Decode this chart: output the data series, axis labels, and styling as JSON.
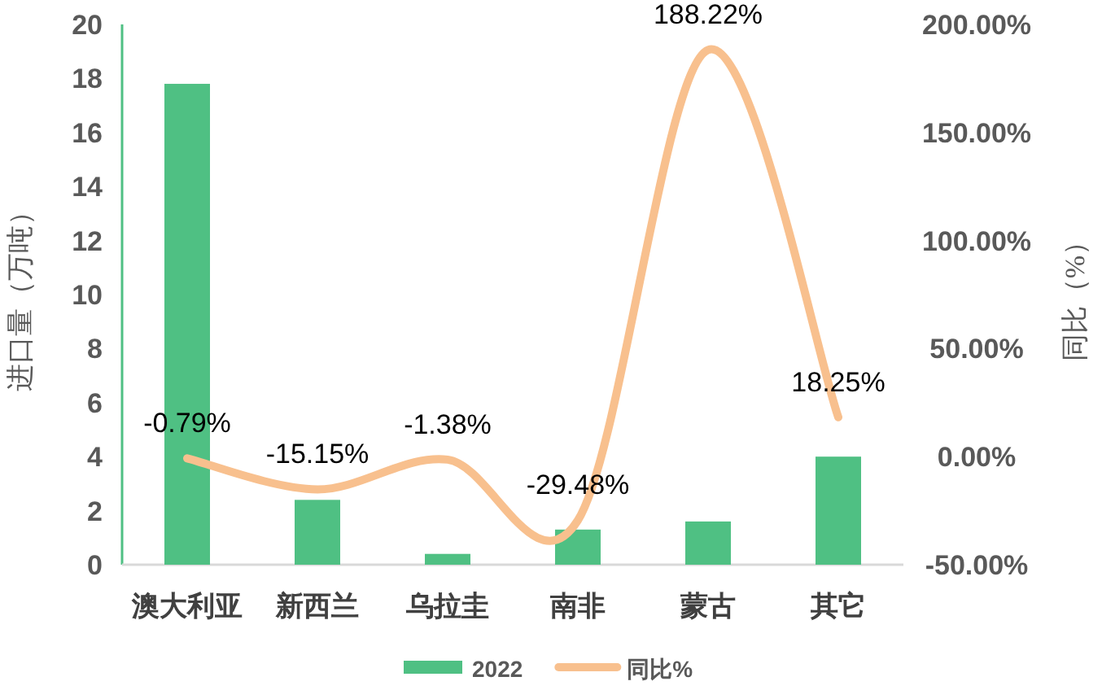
{
  "chart_data": {
    "type": "bar",
    "categories": [
      "澳大利亚",
      "新西兰",
      "乌拉圭",
      "南非",
      "蒙古",
      "其它"
    ],
    "series": [
      {
        "name": "2022",
        "color": "#4fc083",
        "values": [
          17.8,
          2.4,
          0.4,
          1.3,
          1.6,
          4.0
        ]
      },
      {
        "name": "同比%",
        "type": "line",
        "axis": "y2",
        "color": "#f8c08e",
        "values": [
          -0.79,
          -15.15,
          -1.38,
          -29.48,
          188.22,
          18.25
        ],
        "value_labels": [
          "-0.79%",
          "-15.15%",
          "-1.38%",
          "-29.48%",
          "188.22%",
          "18.25%"
        ]
      }
    ],
    "ylabel": "进口量（万吨）",
    "y2label": "同比（%）",
    "ylim": [
      0,
      20
    ],
    "yticks": [
      0,
      2,
      4,
      6,
      8,
      10,
      12,
      14,
      16,
      18,
      20
    ],
    "y2lim": [
      -50,
      200
    ],
    "y2ticks": [
      {
        "value": -50,
        "label": "-50.00%"
      },
      {
        "value": 0,
        "label": "0.00%"
      },
      {
        "value": 50,
        "label": "50.00%"
      },
      {
        "value": 100,
        "label": "100.00%"
      },
      {
        "value": 150,
        "label": "150.00%"
      },
      {
        "value": 200,
        "label": "200.00%"
      }
    ],
    "grid": false,
    "legend": "bottom"
  }
}
